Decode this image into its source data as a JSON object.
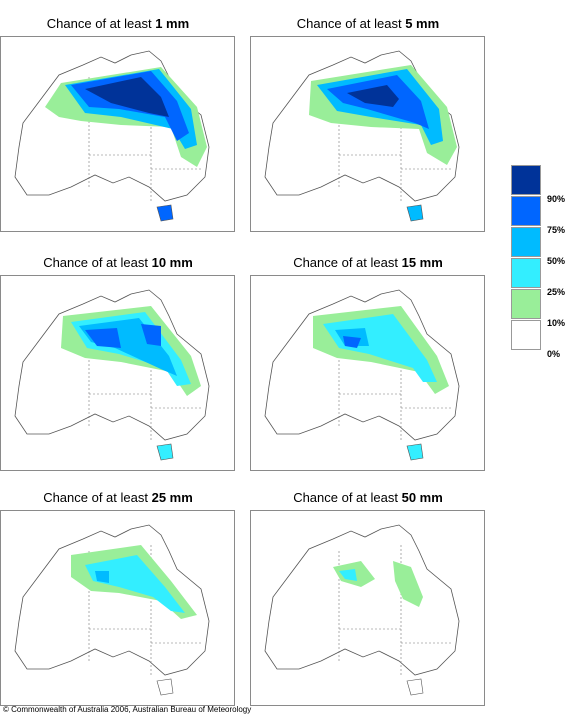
{
  "title_prefix": "Chance of at least",
  "panels": [
    {
      "amount": "1 mm"
    },
    {
      "amount": "5 mm"
    },
    {
      "amount": "10 mm"
    },
    {
      "amount": "15 mm"
    },
    {
      "amount": "25 mm"
    },
    {
      "amount": "50 mm"
    }
  ],
  "legend": {
    "labels": [
      "90%",
      "75%",
      "50%",
      "25%",
      "10%",
      "0%"
    ],
    "colors": [
      "#003399",
      "#0066ff",
      "#00bbff",
      "#33eeff",
      "#99ee99",
      "#ffffff"
    ]
  },
  "copyright": "© Commonwealth of Australia 2006, Australian Bureau of Meteorology"
}
